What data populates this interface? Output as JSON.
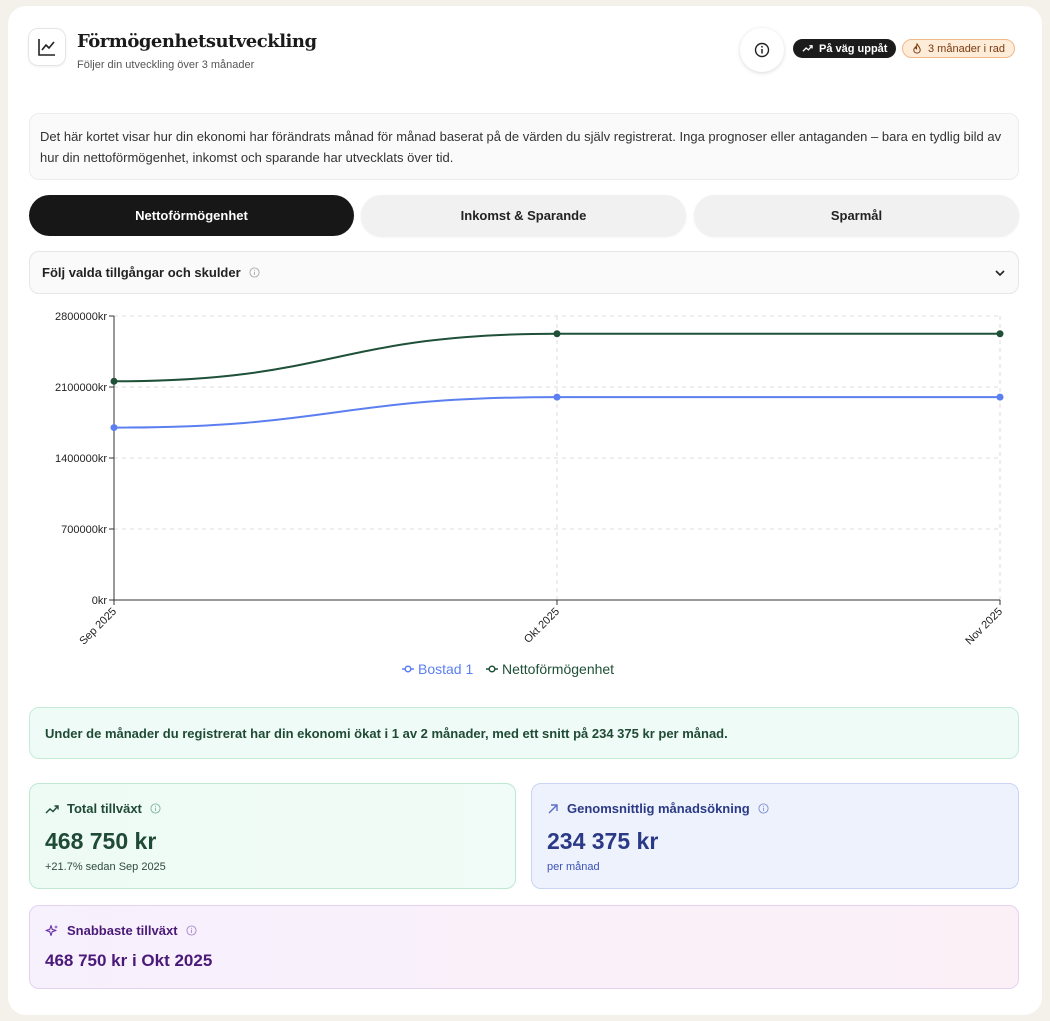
{
  "header": {
    "title": "Förmögenhetsutveckling",
    "subtitle": "Följer din utveckling över 3 månader",
    "trend_badge": "På väg uppåt",
    "streak_badge": "3 månader i rad"
  },
  "description": "Det här kortet visar hur din ekonomi har förändrats månad för månad baserat på de värden du själv registrerat. Inga prognoser eller antaganden – bara en tydlig bild av hur din nettoförmögenhet, inkomst och sparande har utvecklats över tid.",
  "tabs": [
    {
      "label": "Nettoförmögenhet",
      "active": true
    },
    {
      "label": "Inkomst & Sparande",
      "active": false
    },
    {
      "label": "Sparmål",
      "active": false
    }
  ],
  "dropdown": {
    "label": "Följ valda tillgångar och skulder"
  },
  "chart_data": {
    "type": "line",
    "x": [
      "Sep 2025",
      "Okt 2025",
      "Nov 2025"
    ],
    "yticks": [
      "0kr",
      "700000kr",
      "1400000kr",
      "2100000kr",
      "2800000kr"
    ],
    "ylim": [
      0,
      2800000
    ],
    "grid": true,
    "legend_position": "bottom",
    "series": [
      {
        "name": "Bostad 1",
        "color": "#5b7ff0",
        "values": [
          1700000,
          2000000,
          2000000
        ]
      },
      {
        "name": "Nettoförmögenhet",
        "color": "#1f5038",
        "values": [
          2156250,
          2625000,
          2625000
        ]
      }
    ]
  },
  "insight": "Under de månader du registrerat har din ekonomi ökat i 1 av 2 månader, med ett snitt på 234 375 kr per månad.",
  "stats": {
    "total": {
      "label": "Total tillväxt",
      "value": "468 750 kr",
      "sub": "+21.7% sedan Sep 2025",
      "color": "#1f4a36"
    },
    "average": {
      "label": "Genomsnittlig månadsökning",
      "value": "234 375 kr",
      "sub": "per månad",
      "color": "#2b3a86"
    },
    "fastest": {
      "label": "Snabbaste tillväxt",
      "value": "468 750 kr i Okt 2025",
      "color": "#4b1a78"
    }
  }
}
